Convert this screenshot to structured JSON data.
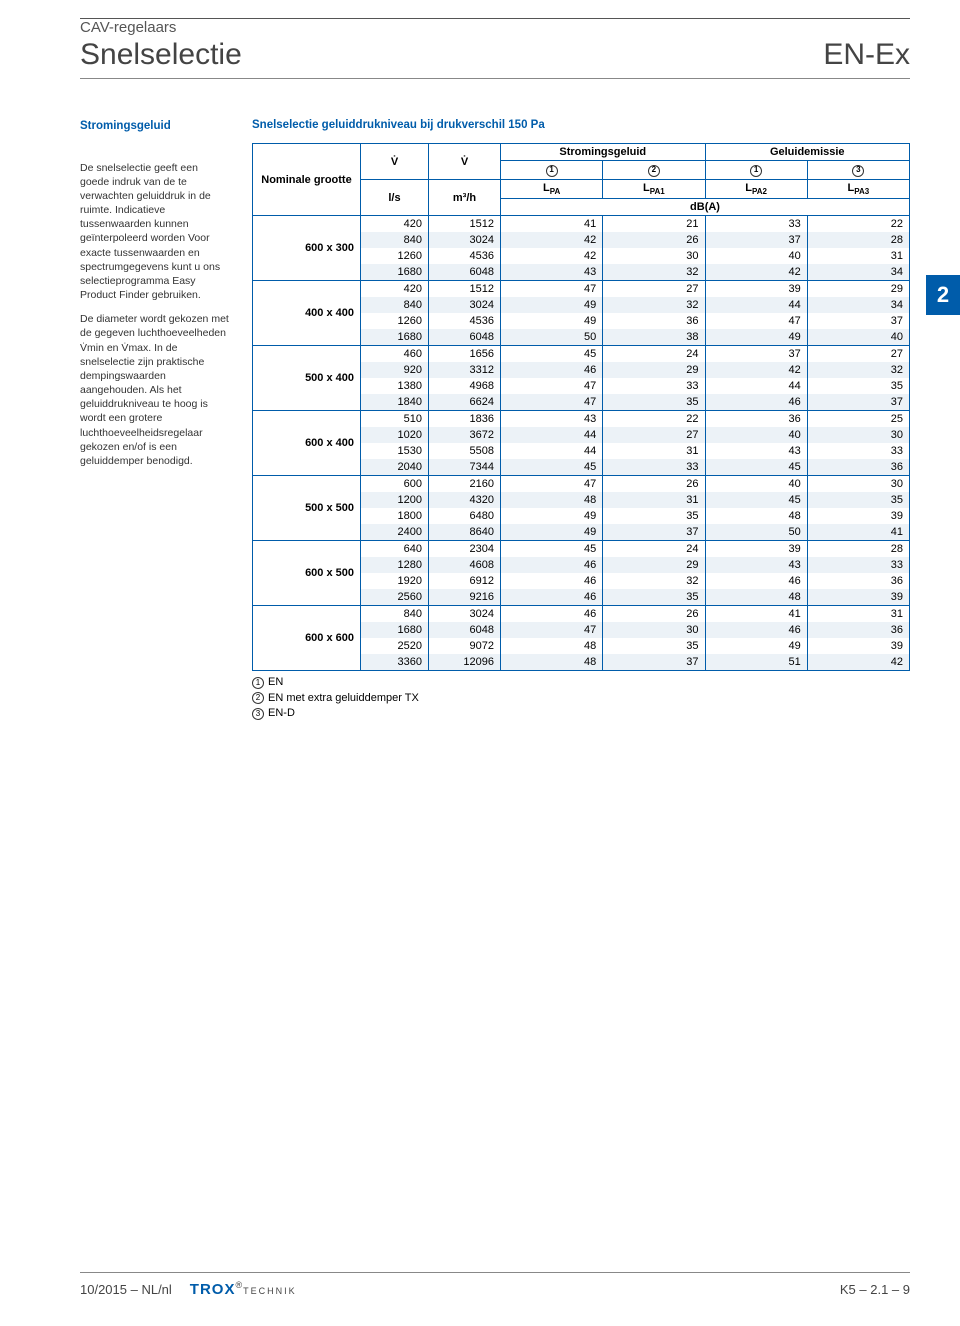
{
  "header": {
    "category": "CAV-regelaars",
    "title": "Snelselectie",
    "product": "EN-Ex"
  },
  "side": {
    "heading": "Stromingsgeluid",
    "para1": "De snelselectie geeft een goede indruk van de te verwachten geluiddruk in de ruimte. Indicatieve tussenwaarden kunnen geïnterpoleerd worden Voor exacte tussenwaarden en spectrumgegevens kunt u ons selectieprogramma Easy Product Finder gebruiken.",
    "para2": "De diameter wordt gekozen met de gegeven luchthoeveelheden V̇min en V̇max. In de snelselectie zijn praktische dempingswaarden aangehouden. Als het geluiddrukniveau te hoog is wordt een grotere luchthoeveelheidsregelaar gekozen en/of is een geluiddemper benodigd."
  },
  "tab": "2",
  "table": {
    "title": "Snelselectie geluiddrukniveau bij drukverschil 150 Pa",
    "header": {
      "nom": "Nominale grootte",
      "vdot1": "V̇",
      "vdot2": "V̇",
      "flow_noise": "Stromingsgeluid",
      "emission": "Geluidemissie",
      "lpa": "LPA",
      "lpa1": "LPA1",
      "lpa2": "LPA2",
      "lpa3": "LPA3",
      "units_ls": "l/s",
      "units_m3h": "m³/h",
      "units_dba": "dB(A)",
      "circ1": "1",
      "circ2": "2",
      "circ3": "3"
    },
    "groups": [
      {
        "size": "600 x 300",
        "rows": [
          [
            420,
            1512,
            41,
            21,
            33,
            22
          ],
          [
            840,
            3024,
            42,
            26,
            37,
            28
          ],
          [
            1260,
            4536,
            42,
            30,
            40,
            31
          ],
          [
            1680,
            6048,
            43,
            32,
            42,
            34
          ]
        ]
      },
      {
        "size": "400 x 400",
        "rows": [
          [
            420,
            1512,
            47,
            27,
            39,
            29
          ],
          [
            840,
            3024,
            49,
            32,
            44,
            34
          ],
          [
            1260,
            4536,
            49,
            36,
            47,
            37
          ],
          [
            1680,
            6048,
            50,
            38,
            49,
            40
          ]
        ]
      },
      {
        "size": "500 x 400",
        "rows": [
          [
            460,
            1656,
            45,
            24,
            37,
            27
          ],
          [
            920,
            3312,
            46,
            29,
            42,
            32
          ],
          [
            1380,
            4968,
            47,
            33,
            44,
            35
          ],
          [
            1840,
            6624,
            47,
            35,
            46,
            37
          ]
        ]
      },
      {
        "size": "600 x 400",
        "rows": [
          [
            510,
            1836,
            43,
            22,
            36,
            25
          ],
          [
            1020,
            3672,
            44,
            27,
            40,
            30
          ],
          [
            1530,
            5508,
            44,
            31,
            43,
            33
          ],
          [
            2040,
            7344,
            45,
            33,
            45,
            36
          ]
        ]
      },
      {
        "size": "500 x 500",
        "rows": [
          [
            600,
            2160,
            47,
            26,
            40,
            30
          ],
          [
            1200,
            4320,
            48,
            31,
            45,
            35
          ],
          [
            1800,
            6480,
            49,
            35,
            48,
            39
          ],
          [
            2400,
            8640,
            49,
            37,
            50,
            41
          ]
        ]
      },
      {
        "size": "600 x 500",
        "rows": [
          [
            640,
            2304,
            45,
            24,
            39,
            28
          ],
          [
            1280,
            4608,
            46,
            29,
            43,
            33
          ],
          [
            1920,
            6912,
            46,
            32,
            46,
            36
          ],
          [
            2560,
            9216,
            46,
            35,
            48,
            39
          ]
        ]
      },
      {
        "size": "600 x 600",
        "rows": [
          [
            840,
            3024,
            46,
            26,
            41,
            31
          ],
          [
            1680,
            6048,
            47,
            30,
            46,
            36
          ],
          [
            2520,
            9072,
            48,
            35,
            49,
            39
          ],
          [
            3360,
            12096,
            48,
            37,
            51,
            42
          ]
        ]
      }
    ]
  },
  "legend": {
    "l1": "EN",
    "l2": "EN met extra geluiddemper TX",
    "l3": "EN-D"
  },
  "footer": {
    "date": "10/2015 – NL/nl",
    "brand_trox": "TRO",
    "brand_x": "X",
    "brand_technik": "TECHNIK",
    "page": "K5 – 2.1 – 9"
  },
  "colors": {
    "accent": "#005caa",
    "stripe": "#ecf2f7"
  }
}
